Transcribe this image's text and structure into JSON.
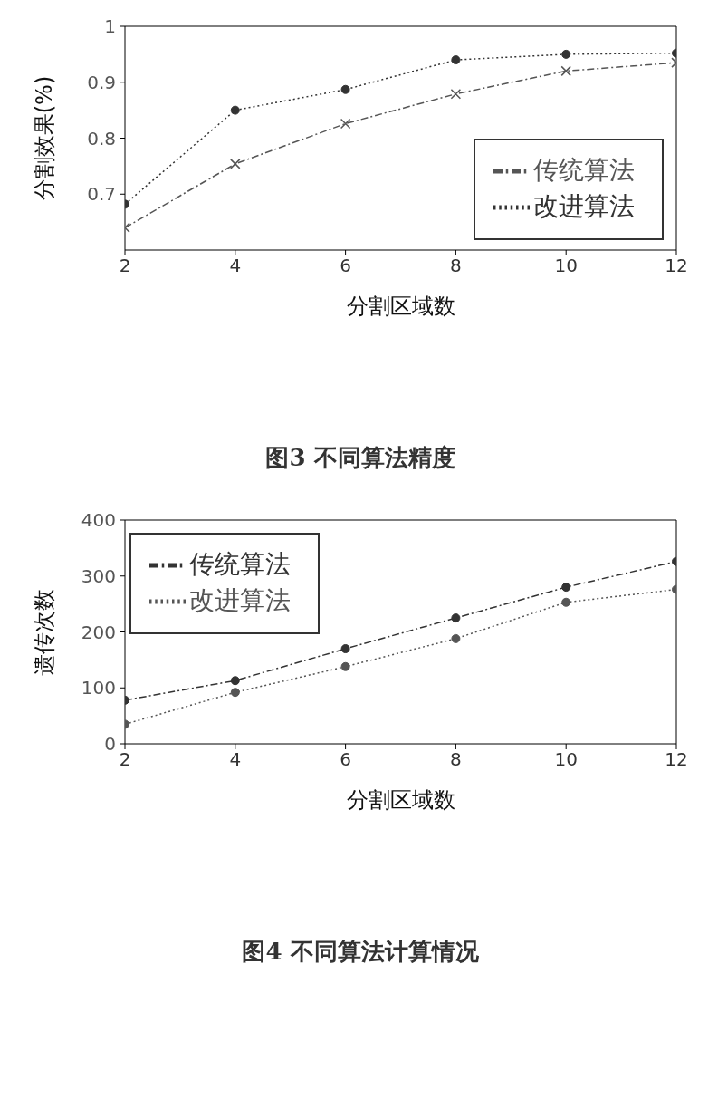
{
  "chart_data": [
    {
      "type": "line",
      "title": "图3  不同算法精度",
      "xlabel": "分割区域数",
      "ylabel": "分割效果(%)",
      "x": [
        2,
        4,
        6,
        8,
        10,
        12
      ],
      "xlim": [
        2,
        12
      ],
      "xticks": [
        2,
        4,
        6,
        8,
        10,
        12
      ],
      "ylim": [
        0.6,
        1
      ],
      "yticks": [
        0.7,
        0.8,
        0.9,
        1
      ],
      "grid": false,
      "legend": "bottom right",
      "series": [
        {
          "name": "传统算法",
          "color": "#555555",
          "values": [
            0.64,
            0.754,
            0.826,
            0.879,
            0.92,
            0.935
          ],
          "marker": "cross",
          "line_style": "dashed"
        },
        {
          "name": "改进算法",
          "color": "#333333",
          "values": [
            0.682,
            0.85,
            0.887,
            0.94,
            0.95,
            0.952
          ],
          "marker": "circle",
          "line_style": "dotted"
        }
      ]
    },
    {
      "type": "line",
      "title": "图4  不同算法计算情况",
      "xlabel": "分割区域数",
      "ylabel": "遗传次数",
      "x": [
        2,
        4,
        6,
        8,
        10,
        12
      ],
      "xlim": [
        2,
        12
      ],
      "xticks": [
        2,
        4,
        6,
        8,
        10,
        12
      ],
      "ylim": [
        0,
        400
      ],
      "yticks": [
        0,
        100,
        200,
        300,
        400
      ],
      "grid": false,
      "legend": "top left",
      "series": [
        {
          "name": "传统算法",
          "color": "#333333",
          "values": [
            78,
            113,
            170,
            225,
            280,
            326
          ],
          "marker": "circle",
          "line_style": "dashed"
        },
        {
          "name": "改进算法",
          "color": "#555555",
          "values": [
            35,
            92,
            138,
            188,
            253,
            276
          ],
          "marker": "circle",
          "line_style": "dotted"
        }
      ]
    }
  ]
}
